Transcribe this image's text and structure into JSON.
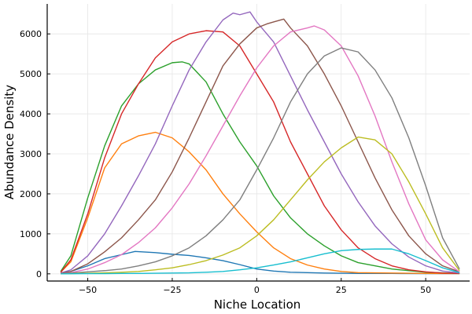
{
  "chart_data": {
    "type": "line",
    "title": "",
    "xlabel": "Niche Location",
    "ylabel": "Abundance Density",
    "xlim": [
      -62,
      63
    ],
    "ylim": [
      -180,
      6750
    ],
    "grid": true,
    "legend": "none",
    "xticks": [
      -50,
      -25,
      0,
      25,
      50
    ],
    "xtick_labels": [
      "−50",
      "−25",
      "0",
      "25",
      "50"
    ],
    "yticks": [
      0,
      1000,
      2000,
      3000,
      4000,
      5000,
      6000
    ],
    "ytick_labels": [
      "0",
      "1000",
      "2000",
      "3000",
      "4000",
      "5000",
      "6000"
    ],
    "series": [
      {
        "color": "#1f77b4",
        "x": [
          -58,
          -55,
          -50,
          -45,
          -40,
          -36,
          -30,
          -25,
          -20,
          -15,
          -10,
          -5,
          0,
          5,
          10,
          15,
          20,
          25,
          30,
          40,
          50,
          60
        ],
        "y": [
          20,
          60,
          200,
          380,
          480,
          560,
          530,
          490,
          460,
          400,
          330,
          230,
          120,
          70,
          40,
          30,
          20,
          15,
          10,
          10,
          5,
          5
        ]
      },
      {
        "color": "#ff7f0e",
        "x": [
          -58,
          -55,
          -50,
          -45,
          -40,
          -35,
          -30,
          -25,
          -20,
          -15,
          -10,
          -5,
          0,
          5,
          10,
          15,
          20,
          25,
          30,
          40,
          50,
          60
        ],
        "y": [
          40,
          300,
          1400,
          2650,
          3250,
          3450,
          3540,
          3400,
          3050,
          2600,
          2000,
          1500,
          1050,
          650,
          380,
          220,
          120,
          60,
          30,
          20,
          10,
          5
        ]
      },
      {
        "color": "#2ca02c",
        "x": [
          -58,
          -55,
          -50,
          -45,
          -40,
          -35,
          -30,
          -25,
          -22,
          -20,
          -15,
          -10,
          -5,
          0,
          5,
          10,
          15,
          20,
          25,
          30,
          40,
          50,
          60
        ],
        "y": [
          60,
          450,
          1900,
          3200,
          4200,
          4750,
          5100,
          5280,
          5300,
          5250,
          4800,
          4000,
          3300,
          2700,
          1950,
          1400,
          1000,
          700,
          450,
          280,
          120,
          40,
          10
        ]
      },
      {
        "color": "#d62728",
        "x": [
          -58,
          -55,
          -50,
          -45,
          -40,
          -35,
          -30,
          -25,
          -20,
          -15,
          -10,
          -5,
          0,
          5,
          10,
          15,
          20,
          25,
          30,
          35,
          40,
          45,
          50,
          55,
          60
        ],
        "y": [
          40,
          350,
          1500,
          2900,
          4000,
          4750,
          5400,
          5800,
          6000,
          6080,
          6050,
          5700,
          5000,
          4300,
          3300,
          2500,
          1700,
          1100,
          650,
          380,
          200,
          100,
          50,
          20,
          10
        ]
      },
      {
        "color": "#9467bd",
        "x": [
          -58,
          -55,
          -50,
          -45,
          -40,
          -35,
          -30,
          -25,
          -20,
          -15,
          -10,
          -7,
          -5,
          -2,
          0,
          5,
          10,
          15,
          20,
          25,
          30,
          35,
          40,
          45,
          50,
          55,
          60
        ],
        "y": [
          20,
          100,
          450,
          1000,
          1700,
          2450,
          3250,
          4200,
          5100,
          5800,
          6350,
          6520,
          6480,
          6550,
          6300,
          5800,
          4950,
          4100,
          3300,
          2500,
          1800,
          1200,
          750,
          420,
          200,
          70,
          20
        ]
      },
      {
        "color": "#8c564b",
        "x": [
          -58,
          -55,
          -50,
          -45,
          -40,
          -35,
          -30,
          -25,
          -20,
          -15,
          -10,
          -5,
          0,
          3,
          5,
          8,
          10,
          15,
          20,
          25,
          30,
          35,
          40,
          45,
          50,
          55,
          60
        ],
        "y": [
          10,
          60,
          250,
          550,
          900,
          1350,
          1850,
          2550,
          3400,
          4300,
          5200,
          5750,
          6150,
          6250,
          6300,
          6370,
          6150,
          5700,
          5000,
          4200,
          3300,
          2400,
          1600,
          950,
          500,
          200,
          50
        ]
      },
      {
        "color": "#e377c2",
        "x": [
          -58,
          -55,
          -50,
          -45,
          -40,
          -35,
          -30,
          -25,
          -20,
          -15,
          -10,
          -5,
          0,
          5,
          10,
          15,
          17,
          20,
          25,
          30,
          35,
          40,
          45,
          50,
          55,
          60
        ],
        "y": [
          5,
          30,
          120,
          280,
          480,
          780,
          1150,
          1650,
          2250,
          2950,
          3700,
          4450,
          5150,
          5700,
          6050,
          6150,
          6200,
          6100,
          5700,
          4950,
          3950,
          2800,
          1750,
          850,
          350,
          50
        ]
      },
      {
        "color": "#7f7f7f",
        "x": [
          -58,
          -55,
          -50,
          -45,
          -40,
          -35,
          -30,
          -25,
          -20,
          -15,
          -10,
          -5,
          0,
          5,
          10,
          15,
          20,
          25,
          30,
          35,
          40,
          45,
          50,
          55,
          60
        ],
        "y": [
          5,
          20,
          50,
          80,
          120,
          200,
          300,
          450,
          650,
          950,
          1350,
          1850,
          2600,
          3400,
          4300,
          5000,
          5450,
          5650,
          5550,
          5100,
          4400,
          3400,
          2200,
          900,
          120
        ]
      },
      {
        "color": "#bcbd22",
        "x": [
          -58,
          -55,
          -50,
          -45,
          -40,
          -35,
          -30,
          -25,
          -20,
          -15,
          -10,
          -5,
          0,
          5,
          10,
          15,
          20,
          25,
          30,
          35,
          40,
          45,
          50,
          55,
          60
        ],
        "y": [
          0,
          5,
          15,
          25,
          40,
          60,
          100,
          150,
          230,
          330,
          470,
          650,
          950,
          1350,
          1850,
          2350,
          2800,
          3150,
          3420,
          3350,
          3000,
          2300,
          1500,
          650,
          80
        ]
      },
      {
        "color": "#17becf",
        "x": [
          -58,
          -50,
          -45,
          -40,
          -35,
          -30,
          -25,
          -20,
          -15,
          -10,
          -5,
          0,
          5,
          10,
          15,
          20,
          25,
          30,
          35,
          40,
          45,
          50,
          55,
          60
        ],
        "y": [
          0,
          5,
          5,
          10,
          10,
          15,
          20,
          25,
          40,
          60,
          100,
          150,
          220,
          300,
          400,
          500,
          580,
          610,
          620,
          620,
          500,
          330,
          150,
          30
        ]
      }
    ]
  }
}
